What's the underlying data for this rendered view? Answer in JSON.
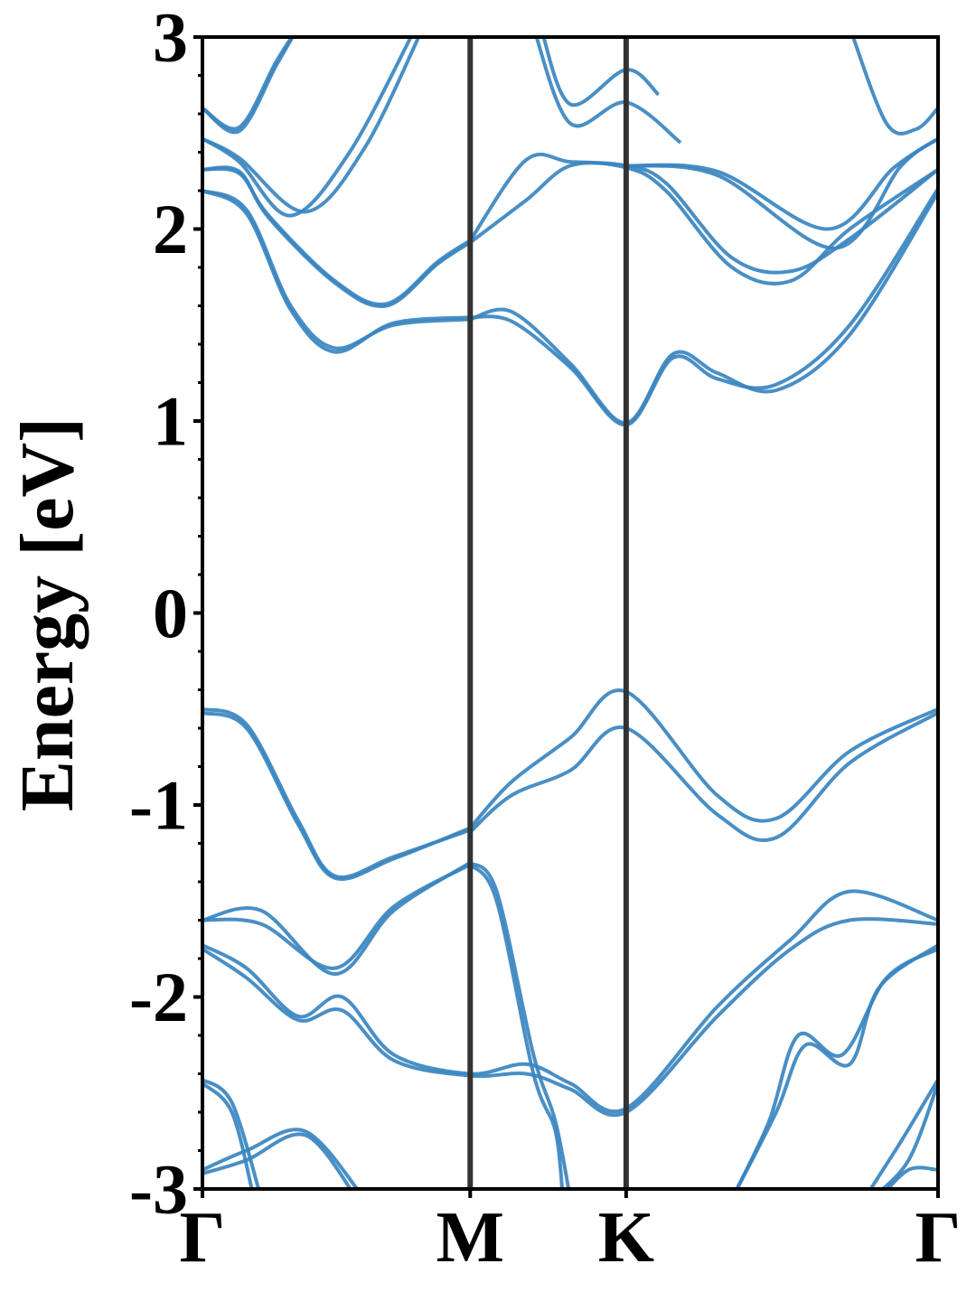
{
  "chart_data": {
    "type": "line",
    "title": "",
    "ylabel": "Energy [eV]",
    "xlabel": "",
    "ylim": [
      -3,
      3
    ],
    "yticks": [
      3,
      2,
      1,
      0,
      -1,
      -2,
      -3
    ],
    "ytick_labels": [
      "3",
      "2",
      "1",
      "0",
      "-1",
      "-2",
      "-3"
    ],
    "xlim": [
      0,
      1
    ],
    "xticks": [
      0,
      0.364,
      0.576,
      1
    ],
    "xtick_labels": [
      "Γ",
      "M",
      "K",
      "Γ"
    ],
    "high_symmetry_lines": [
      0.364,
      0.576
    ],
    "grid": false,
    "series_color": "#3a86c0",
    "vline_color": "#333333",
    "series": [
      {
        "values": [
          [
            0,
            2.63
          ],
          [
            0.05,
            2.51
          ],
          [
            0.1,
            2.85
          ],
          [
            0.13,
            3.05
          ]
        ]
      },
      {
        "values": [
          [
            0,
            2.63
          ],
          [
            0.05,
            2.53
          ],
          [
            0.1,
            2.87
          ],
          [
            0.13,
            3.05
          ]
        ]
      },
      {
        "values": [
          [
            0,
            2.47
          ],
          [
            0.05,
            2.35
          ],
          [
            0.12,
            2.07
          ],
          [
            0.2,
            2.4
          ],
          [
            0.29,
            3.05
          ]
        ]
      },
      {
        "values": [
          [
            0,
            2.47
          ],
          [
            0.05,
            2.37
          ],
          [
            0.14,
            2.09
          ],
          [
            0.22,
            2.42
          ],
          [
            0.3,
            3.05
          ]
        ]
      },
      {
        "values": [
          [
            0,
            2.31
          ],
          [
            0.05,
            2.3
          ],
          [
            0.09,
            2.06
          ],
          [
            0.18,
            1.72
          ],
          [
            0.25,
            1.6
          ],
          [
            0.32,
            1.82
          ],
          [
            0.364,
            1.93
          ]
        ]
      },
      {
        "values": [
          [
            0,
            2.31
          ],
          [
            0.05,
            2.29
          ],
          [
            0.09,
            2.07
          ],
          [
            0.18,
            1.73
          ],
          [
            0.25,
            1.61
          ],
          [
            0.32,
            1.83
          ],
          [
            0.364,
            1.94
          ]
        ]
      },
      {
        "values": [
          [
            0,
            2.2
          ],
          [
            0.06,
            2.1
          ],
          [
            0.12,
            1.6
          ],
          [
            0.18,
            1.38
          ],
          [
            0.26,
            1.5
          ],
          [
            0.364,
            1.53
          ]
        ]
      },
      {
        "values": [
          [
            0,
            2.2
          ],
          [
            0.06,
            2.08
          ],
          [
            0.12,
            1.58
          ],
          [
            0.18,
            1.36
          ],
          [
            0.26,
            1.51
          ],
          [
            0.364,
            1.54
          ]
        ]
      },
      {
        "values": [
          [
            0.364,
            1.53
          ],
          [
            0.42,
            1.57
          ],
          [
            0.5,
            1.3
          ],
          [
            0.576,
            0.99
          ],
          [
            0.64,
            1.35
          ],
          [
            0.7,
            1.25
          ],
          [
            0.78,
            1.16
          ],
          [
            0.88,
            1.45
          ],
          [
            1,
            2.19
          ]
        ]
      },
      {
        "values": [
          [
            0.364,
            1.54
          ],
          [
            0.42,
            1.52
          ],
          [
            0.5,
            1.28
          ],
          [
            0.576,
            0.98
          ],
          [
            0.64,
            1.33
          ],
          [
            0.7,
            1.22
          ],
          [
            0.78,
            1.19
          ],
          [
            0.88,
            1.5
          ],
          [
            1,
            2.21
          ]
        ]
      },
      {
        "values": [
          [
            0.364,
            1.93
          ],
          [
            0.44,
            2.15
          ],
          [
            0.5,
            2.33
          ],
          [
            0.576,
            2.32
          ],
          [
            0.63,
            2.2
          ],
          [
            0.72,
            1.8
          ],
          [
            0.8,
            1.73
          ],
          [
            0.88,
            2.0
          ],
          [
            1,
            2.31
          ]
        ]
      },
      {
        "values": [
          [
            0.364,
            1.94
          ],
          [
            0.44,
            2.36
          ],
          [
            0.5,
            2.35
          ],
          [
            0.576,
            2.33
          ],
          [
            0.63,
            2.24
          ],
          [
            0.72,
            1.85
          ],
          [
            0.8,
            1.78
          ],
          [
            0.88,
            1.95
          ],
          [
            1,
            2.31
          ]
        ]
      },
      {
        "values": [
          [
            0.576,
            2.33
          ],
          [
            0.7,
            2.3
          ],
          [
            0.85,
            2.0
          ],
          [
            0.94,
            2.32
          ],
          [
            1,
            2.47
          ]
        ]
      },
      {
        "values": [
          [
            0.576,
            2.33
          ],
          [
            0.7,
            2.28
          ],
          [
            0.86,
            1.9
          ],
          [
            0.95,
            2.33
          ],
          [
            1,
            2.47
          ]
        ]
      },
      {
        "values": [
          [
            0.46,
            3.05
          ],
          [
            0.5,
            2.65
          ],
          [
            0.576,
            2.83
          ],
          [
            0.62,
            2.7
          ]
        ]
      },
      {
        "values": [
          [
            0.45,
            3.05
          ],
          [
            0.5,
            2.55
          ],
          [
            0.576,
            2.66
          ],
          [
            0.65,
            2.45
          ]
        ]
      },
      {
        "values": [
          [
            0.88,
            3.05
          ],
          [
            0.93,
            2.55
          ],
          [
            0.97,
            2.52
          ],
          [
            1,
            2.63
          ]
        ]
      },
      {
        "values": [
          [
            0,
            -0.52
          ],
          [
            0.06,
            -0.6
          ],
          [
            0.13,
            -1.1
          ],
          [
            0.18,
            -1.38
          ],
          [
            0.26,
            -1.28
          ],
          [
            0.364,
            -1.12
          ]
        ]
      },
      {
        "values": [
          [
            0,
            -0.5
          ],
          [
            0.06,
            -0.58
          ],
          [
            0.13,
            -1.08
          ],
          [
            0.18,
            -1.37
          ],
          [
            0.26,
            -1.27
          ],
          [
            0.364,
            -1.13
          ]
        ]
      },
      {
        "values": [
          [
            0.364,
            -1.12
          ],
          [
            0.42,
            -0.88
          ],
          [
            0.5,
            -0.65
          ],
          [
            0.576,
            -0.41
          ],
          [
            0.7,
            -0.95
          ],
          [
            0.78,
            -1.07
          ],
          [
            0.88,
            -0.72
          ],
          [
            1,
            -0.5
          ]
        ]
      },
      {
        "values": [
          [
            0.364,
            -1.14
          ],
          [
            0.42,
            -0.95
          ],
          [
            0.5,
            -0.82
          ],
          [
            0.576,
            -0.6
          ],
          [
            0.7,
            -1.05
          ],
          [
            0.78,
            -1.17
          ],
          [
            0.88,
            -0.78
          ],
          [
            1,
            -0.52
          ]
        ]
      },
      {
        "values": [
          [
            0,
            -1.6
          ],
          [
            0.08,
            -1.55
          ],
          [
            0.18,
            -1.88
          ],
          [
            0.26,
            -1.55
          ],
          [
            0.364,
            -1.3
          ]
        ]
      },
      {
        "values": [
          [
            0,
            -1.6
          ],
          [
            0.08,
            -1.62
          ],
          [
            0.18,
            -1.85
          ],
          [
            0.26,
            -1.53
          ],
          [
            0.364,
            -1.31
          ]
        ]
      },
      {
        "values": [
          [
            0,
            -1.73
          ],
          [
            0.06,
            -1.85
          ],
          [
            0.13,
            -2.1
          ],
          [
            0.19,
            -2.0
          ],
          [
            0.26,
            -2.3
          ],
          [
            0.364,
            -2.4
          ],
          [
            0.44,
            -2.35
          ],
          [
            0.5,
            -2.45
          ],
          [
            0.576,
            -2.58
          ],
          [
            0.7,
            -2.05
          ],
          [
            0.8,
            -1.7
          ],
          [
            0.88,
            -1.45
          ],
          [
            1,
            -1.6
          ]
        ]
      },
      {
        "values": [
          [
            0,
            -1.75
          ],
          [
            0.06,
            -1.9
          ],
          [
            0.13,
            -2.12
          ],
          [
            0.19,
            -2.07
          ],
          [
            0.26,
            -2.33
          ],
          [
            0.364,
            -2.41
          ],
          [
            0.44,
            -2.4
          ],
          [
            0.5,
            -2.48
          ],
          [
            0.576,
            -2.6
          ],
          [
            0.7,
            -2.1
          ],
          [
            0.8,
            -1.75
          ],
          [
            0.88,
            -1.6
          ],
          [
            1,
            -1.62
          ]
        ]
      },
      {
        "values": [
          [
            0.364,
            -1.3
          ],
          [
            0.4,
            -1.45
          ],
          [
            0.45,
            -2.3
          ],
          [
            0.48,
            -2.65
          ],
          [
            0.5,
            -3.05
          ]
        ]
      },
      {
        "values": [
          [
            0.364,
            -1.31
          ],
          [
            0.4,
            -1.5
          ],
          [
            0.45,
            -2.4
          ],
          [
            0.48,
            -2.7
          ],
          [
            0.49,
            -3.05
          ]
        ]
      },
      {
        "values": [
          [
            0.72,
            -3.05
          ],
          [
            0.78,
            -2.6
          ],
          [
            0.82,
            -2.25
          ],
          [
            0.88,
            -2.35
          ],
          [
            0.92,
            -1.95
          ],
          [
            1,
            -1.73
          ]
        ]
      },
      {
        "values": [
          [
            0.72,
            -3.05
          ],
          [
            0.77,
            -2.65
          ],
          [
            0.81,
            -2.2
          ],
          [
            0.87,
            -2.3
          ],
          [
            0.93,
            -1.9
          ],
          [
            1,
            -1.75
          ]
        ]
      },
      {
        "values": [
          [
            0,
            -2.43
          ],
          [
            0.04,
            -2.55
          ],
          [
            0.08,
            -3.05
          ]
        ]
      },
      {
        "values": [
          [
            0,
            -2.45
          ],
          [
            0.04,
            -2.6
          ],
          [
            0.07,
            -3.05
          ]
        ]
      },
      {
        "values": [
          [
            0,
            -2.9
          ],
          [
            0.06,
            -2.8
          ],
          [
            0.14,
            -2.7
          ],
          [
            0.22,
            -3.05
          ]
        ]
      },
      {
        "values": [
          [
            0,
            -2.92
          ],
          [
            0.06,
            -2.85
          ],
          [
            0.14,
            -2.72
          ],
          [
            0.21,
            -3.05
          ]
        ]
      },
      {
        "values": [
          [
            0,
            -3.0
          ],
          [
            0.03,
            -3.05
          ]
        ]
      },
      {
        "values": [
          [
            0.9,
            -3.05
          ],
          [
            0.95,
            -2.75
          ],
          [
            1,
            -2.43
          ]
        ]
      },
      {
        "values": [
          [
            0.91,
            -3.05
          ],
          [
            0.96,
            -2.85
          ],
          [
            1,
            -2.45
          ]
        ]
      },
      {
        "values": [
          [
            0.92,
            -3.05
          ],
          [
            0.96,
            -2.9
          ],
          [
            1,
            -2.9
          ]
        ]
      },
      {
        "values": [
          [
            0.97,
            -3.05
          ],
          [
            1,
            -3.0
          ]
        ]
      }
    ]
  }
}
